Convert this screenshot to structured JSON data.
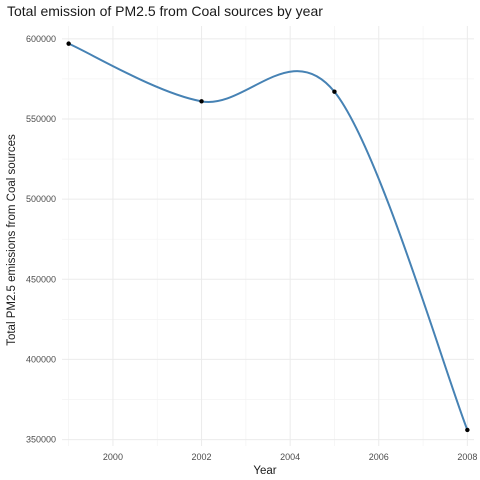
{
  "chart_data": {
    "type": "line",
    "title": "Total emission of PM2.5 from Coal sources by year",
    "xlabel": "Year",
    "ylabel": "Total PM2.5 emissions from Coal sources",
    "x": [
      1999,
      2002,
      2005,
      2008
    ],
    "series": [
      {
        "name": "",
        "values": [
          597000,
          561000,
          567000,
          356000
        ]
      }
    ],
    "smoothed": true,
    "x_ticks": [
      2000,
      2002,
      2004,
      2006,
      2008
    ],
    "y_ticks": [
      350000,
      400000,
      450000,
      500000,
      550000,
      600000
    ],
    "x_tick_labels": [
      "2000",
      "2002",
      "2004",
      "2006",
      "2008"
    ],
    "y_tick_labels": [
      "350000",
      "400000",
      "450000",
      "500000",
      "550000",
      "600000"
    ],
    "xlim": [
      1998.85,
      2008.15
    ],
    "ylim": [
      346000,
      608000
    ],
    "grid": true,
    "line_color": "#4682b4",
    "point_color": "#000000"
  }
}
